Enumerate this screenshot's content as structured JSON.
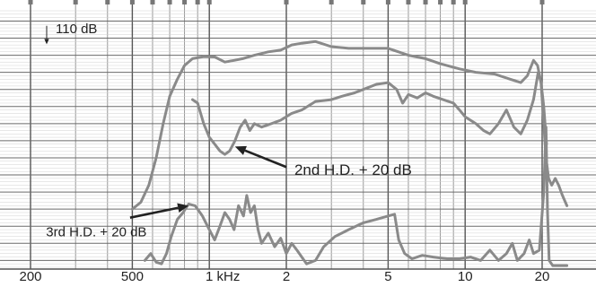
{
  "chart_data": {
    "type": "line",
    "x_scale": "log",
    "xlim": [
      200,
      25000
    ],
    "ylabel_marker": "110 dB",
    "grid": true,
    "x_tick_labels": [
      {
        "x": 200,
        "label": "200"
      },
      {
        "x": 500,
        "label": "500"
      },
      {
        "x": 1000,
        "label": "1 kHz"
      },
      {
        "x": 2000,
        "label": "2"
      },
      {
        "x": 5000,
        "label": "5"
      },
      {
        "x": 10000,
        "label": "10"
      },
      {
        "x": 20000,
        "label": "20"
      }
    ],
    "y_grid_db": [
      120,
      115,
      110,
      105,
      100,
      95,
      90,
      85,
      80,
      75,
      70,
      65,
      60,
      55,
      50
    ],
    "ylim_db": [
      48,
      123
    ],
    "annotations": [
      {
        "text": "2nd H.D. + 20 dB",
        "text_x": 2150,
        "text_db": 75,
        "arrow_from": [
          2000,
          77.3
        ],
        "arrow_to": [
          1260,
          83.3
        ]
      },
      {
        "text": "3rd H.D. + 20 dB",
        "text_x": 230,
        "text_db": 57,
        "arrow_from": [
          490,
          62.5
        ],
        "arrow_to": [
          830,
          66
        ]
      }
    ],
    "series": [
      {
        "color": "#8a8a8a",
        "points": [
          [
            500,
            65
          ],
          [
            540,
            67
          ],
          [
            580,
            72
          ],
          [
            620,
            80
          ],
          [
            660,
            90
          ],
          [
            700,
            98
          ],
          [
            750,
            103
          ],
          [
            800,
            107
          ],
          [
            860,
            109
          ],
          [
            950,
            109.6
          ],
          [
            1050,
            109.5
          ],
          [
            1150,
            108
          ],
          [
            1250,
            108.5
          ],
          [
            1350,
            109
          ],
          [
            1500,
            110
          ],
          [
            1700,
            111
          ],
          [
            1900,
            111.5
          ],
          [
            2100,
            113
          ],
          [
            2300,
            113.5
          ],
          [
            2600,
            114
          ],
          [
            3000,
            112.5
          ],
          [
            3500,
            112
          ],
          [
            4200,
            112
          ],
          [
            5000,
            112
          ],
          [
            6000,
            110
          ],
          [
            7000,
            109
          ],
          [
            8000,
            107.5
          ],
          [
            9500,
            106
          ],
          [
            11000,
            105
          ],
          [
            13000,
            104.5
          ],
          [
            15000,
            103
          ],
          [
            16500,
            102
          ],
          [
            17500,
            104
          ],
          [
            18500,
            108.5
          ],
          [
            19200,
            107
          ],
          [
            19800,
            102
          ],
          [
            20300,
            90
          ],
          [
            20700,
            80
          ],
          [
            21200,
            74
          ],
          [
            21800,
            72
          ],
          [
            22500,
            74
          ],
          [
            23200,
            72
          ],
          [
            24000,
            69
          ],
          [
            25000,
            66
          ]
        ]
      },
      {
        "color": "#8a8a8a",
        "points": [
          [
            860,
            97
          ],
          [
            900,
            96
          ],
          [
            950,
            90
          ],
          [
            1000,
            86
          ],
          [
            1050,
            84
          ],
          [
            1100,
            82
          ],
          [
            1150,
            81
          ],
          [
            1200,
            82
          ],
          [
            1260,
            85
          ],
          [
            1320,
            89
          ],
          [
            1380,
            91
          ],
          [
            1440,
            88
          ],
          [
            1500,
            90
          ],
          [
            1600,
            89
          ],
          [
            1750,
            90
          ],
          [
            1900,
            91
          ],
          [
            2100,
            93
          ],
          [
            2300,
            94
          ],
          [
            2600,
            96.5
          ],
          [
            3000,
            97
          ],
          [
            3300,
            98
          ],
          [
            3700,
            99
          ],
          [
            4000,
            100
          ],
          [
            4500,
            101.5
          ],
          [
            5000,
            102
          ],
          [
            5400,
            100
          ],
          [
            5700,
            96
          ],
          [
            6000,
            98.5
          ],
          [
            6500,
            97.5
          ],
          [
            7000,
            99
          ],
          [
            7500,
            98
          ],
          [
            8200,
            97
          ],
          [
            9000,
            96
          ],
          [
            9500,
            94
          ],
          [
            10000,
            92
          ],
          [
            11000,
            90
          ],
          [
            11800,
            88
          ],
          [
            12500,
            87
          ],
          [
            13500,
            90
          ],
          [
            14500,
            94
          ],
          [
            15500,
            89
          ],
          [
            16500,
            87
          ],
          [
            17500,
            91
          ],
          [
            18500,
            97
          ],
          [
            19300,
            105
          ],
          [
            19800,
            102
          ],
          [
            20300,
            95
          ],
          [
            20800,
            84
          ]
        ]
      },
      {
        "color": "#8a8a8a",
        "points": [
          [
            560,
            50
          ],
          [
            590,
            52
          ],
          [
            620,
            49.5
          ],
          [
            650,
            49
          ],
          [
            680,
            52
          ],
          [
            710,
            57
          ],
          [
            750,
            62
          ],
          [
            790,
            64
          ],
          [
            830,
            66.5
          ],
          [
            880,
            66
          ],
          [
            940,
            63
          ],
          [
            1000,
            59
          ],
          [
            1050,
            56
          ],
          [
            1100,
            60
          ],
          [
            1150,
            64
          ],
          [
            1200,
            62
          ],
          [
            1250,
            59
          ],
          [
            1300,
            66
          ],
          [
            1360,
            63
          ],
          [
            1400,
            69
          ],
          [
            1450,
            64
          ],
          [
            1500,
            66
          ],
          [
            1550,
            59
          ],
          [
            1600,
            55
          ],
          [
            1700,
            58
          ],
          [
            1800,
            54
          ],
          [
            1900,
            56.5
          ],
          [
            2000,
            52
          ],
          [
            2100,
            55
          ],
          [
            2200,
            53
          ],
          [
            2400,
            49
          ],
          [
            2600,
            50
          ],
          [
            2800,
            54
          ],
          [
            3100,
            57
          ],
          [
            3500,
            59
          ],
          [
            4000,
            61
          ],
          [
            4500,
            62
          ],
          [
            5000,
            63
          ],
          [
            5300,
            63.5
          ],
          [
            5500,
            56
          ],
          [
            5800,
            52
          ],
          [
            6200,
            50.5
          ],
          [
            6800,
            51.5
          ],
          [
            7500,
            51
          ],
          [
            8500,
            50.5
          ],
          [
            9500,
            50.5
          ],
          [
            10500,
            51
          ],
          [
            11500,
            50
          ],
          [
            12500,
            53
          ],
          [
            13500,
            50
          ],
          [
            14500,
            52
          ],
          [
            15300,
            55
          ],
          [
            16000,
            50
          ],
          [
            17000,
            52
          ],
          [
            17800,
            56
          ],
          [
            18500,
            52
          ],
          [
            19500,
            53
          ],
          [
            20300,
            70
          ],
          [
            20700,
            89
          ],
          [
            21000,
            64
          ],
          [
            21300,
            50
          ],
          [
            22000,
            48.5
          ],
          [
            25000,
            48.5
          ]
        ]
      }
    ]
  }
}
